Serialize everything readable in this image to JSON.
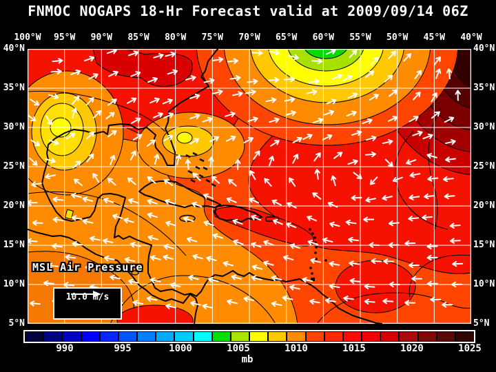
{
  "title": "FNMOC NOGAPS 18-Hr Forecast valid at 2009/09/14 06Z",
  "map": {
    "lon_labels": [
      "100°W",
      "95°W",
      "90°W",
      "85°W",
      "80°W",
      "75°W",
      "70°W",
      "65°W",
      "60°W",
      "55°W",
      "50°W",
      "45°W",
      "40°W"
    ],
    "lat_labels": [
      "40°N",
      "35°N",
      "30°N",
      "25°N",
      "20°N",
      "15°N",
      "10°N",
      "5°N"
    ],
    "field_label": "MSL Air Pressure",
    "wind_legend": {
      "speed_label": "10.0 m/s"
    }
  },
  "colorbar": {
    "unit": "mb",
    "tick_labels": [
      "990",
      "995",
      "1000",
      "1005",
      "1010",
      "1015",
      "1020",
      "1025"
    ],
    "colors": [
      "#000040",
      "#000080",
      "#0000C0",
      "#0000FF",
      "#0028FF",
      "#0055FF",
      "#0080FF",
      "#00AAFF",
      "#00CCFF",
      "#00FFFF",
      "#00E000",
      "#AAE400",
      "#FFFF00",
      "#FFC800",
      "#FF8C00",
      "#FF4600",
      "#FF2800",
      "#FF0A00",
      "#F00000",
      "#D20000",
      "#AA0A0A",
      "#820808",
      "#5A0808",
      "#320404"
    ]
  },
  "field_colors": {
    "orange": "#FF8C00",
    "orange_dark": "#F57800",
    "orange_red": "#FF4600",
    "red": "#F61200",
    "red_dark": "#D80000",
    "maroon1": "#C80000",
    "maroon2": "#A00000",
    "maroon3": "#7A0000",
    "maroon4": "#550000",
    "maroon5": "#320000",
    "gold": "#FFC800",
    "gold_light": "#FFE000",
    "yellow": "#FFFF00",
    "chartreuse": "#A8E000",
    "green": "#00DC00"
  }
}
